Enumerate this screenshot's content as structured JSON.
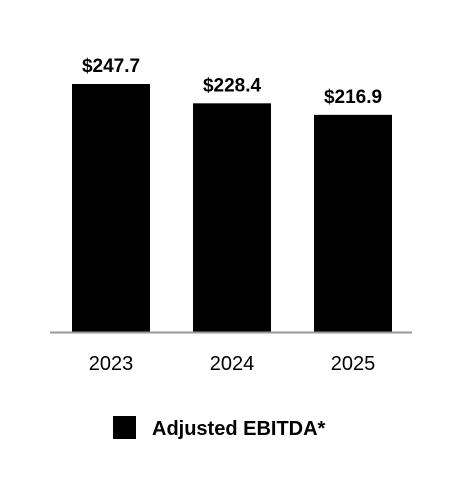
{
  "chart_data": {
    "type": "bar",
    "categories": [
      "2023",
      "2024",
      "2025"
    ],
    "series": [
      {
        "name": "Adjusted EBITDA*",
        "values": [
          247.7,
          228.4,
          216.9
        ],
        "labels": [
          "$247.7",
          "$228.4",
          "$216.9"
        ],
        "color": "#000000"
      }
    ],
    "axis_color": "#999999",
    "ylim": [
      0,
      247.7
    ],
    "grid": false,
    "legend": "bottom-center"
  }
}
